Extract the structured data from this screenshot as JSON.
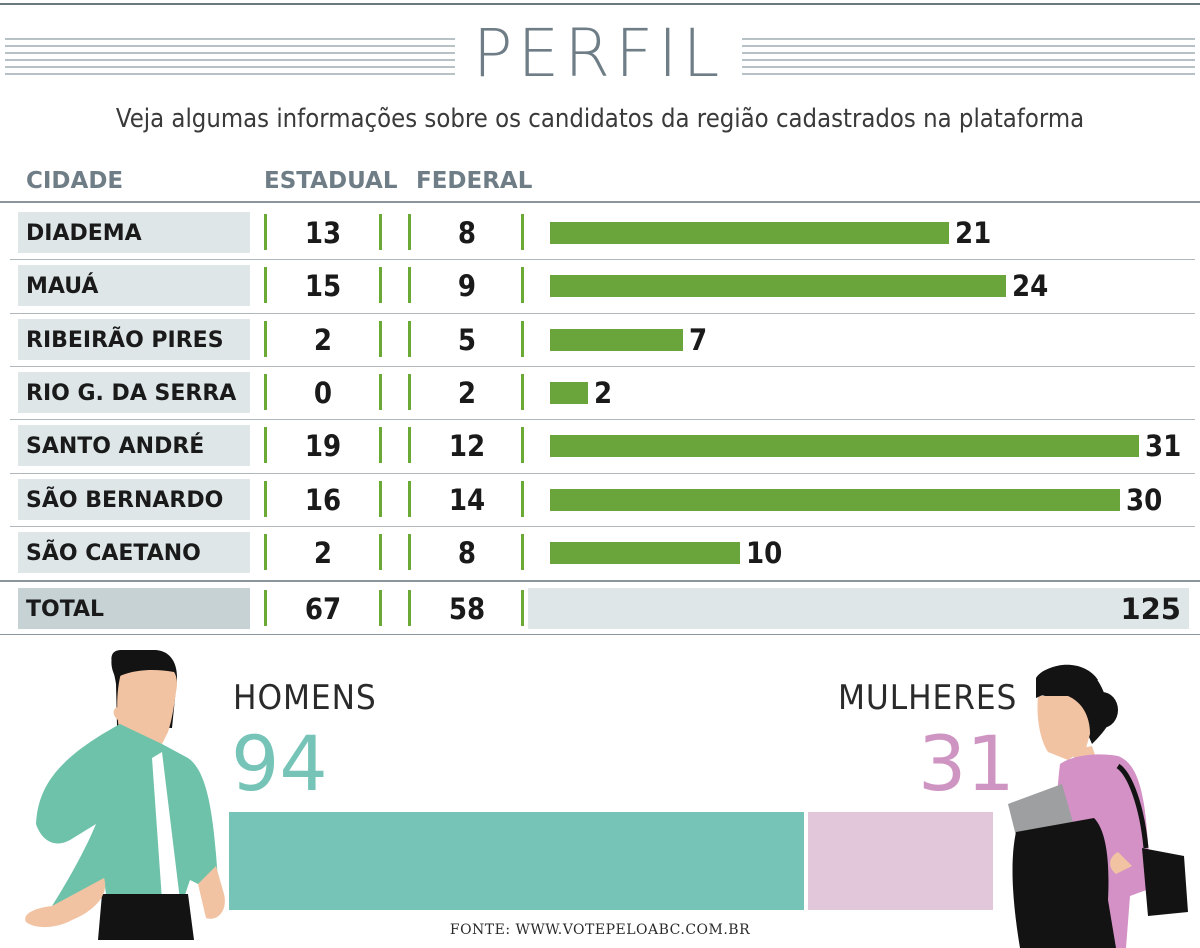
{
  "title": "PERFIL",
  "subtitle": "Veja algumas informações sobre os candidatos da região cadastrados na plataforma",
  "columns": {
    "city": "CIDADE",
    "estadual": "ESTADUAL",
    "federal": "FEDERAL"
  },
  "rows": [
    {
      "city": "DIADEMA",
      "estadual": "13",
      "federal": "8",
      "total": "21"
    },
    {
      "city": "MAUÁ",
      "estadual": "15",
      "federal": "9",
      "total": "24"
    },
    {
      "city": "RIBEIRÃO PIRES",
      "estadual": "2",
      "federal": "5",
      "total": "7"
    },
    {
      "city": "RIO G. DA SERRA",
      "estadual": "0",
      "federal": "2",
      "total": "2"
    },
    {
      "city": "SANTO ANDRÉ",
      "estadual": "19",
      "federal": "12",
      "total": "31"
    },
    {
      "city": "SÃO BERNARDO",
      "estadual": "16",
      "federal": "14",
      "total": "30"
    },
    {
      "city": "SÃO CAETANO",
      "estadual": "2",
      "federal": "8",
      "total": "10"
    }
  ],
  "total_row": {
    "label": "TOTAL",
    "estadual": "67",
    "federal": "58",
    "total": "125"
  },
  "gender": {
    "men_label": "HOMENS",
    "men_value": "94",
    "women_label": "MULHERES",
    "women_value": "31"
  },
  "source": "FONTE: WWW.VOTEPELOABC.COM.BR",
  "colors": {
    "bar_green": "#69a53b",
    "men_teal": "#76c4b7",
    "women_pink": "#e2c6d9",
    "women_text": "#cf95c2",
    "heading_gray": "#6e7d86"
  },
  "chart_data": [
    {
      "type": "bar",
      "categories": [
        "DIADEMA",
        "MAUÁ",
        "RIBEIRÃO PIRES",
        "RIO G. DA SERRA",
        "SANTO ANDRÉ",
        "SÃO BERNARDO",
        "SÃO CAETANO"
      ],
      "values": [
        21,
        24,
        7,
        2,
        31,
        30,
        10
      ],
      "table": {
        "ESTADUAL": [
          13,
          15,
          2,
          0,
          19,
          16,
          2
        ],
        "FEDERAL": [
          8,
          9,
          5,
          2,
          12,
          14,
          8
        ]
      },
      "totals": {
        "ESTADUAL": 67,
        "FEDERAL": 58,
        "TOTAL": 125
      },
      "title": "PERFIL",
      "orientation": "horizontal"
    },
    {
      "type": "bar",
      "categories": [
        "HOMENS",
        "MULHERES"
      ],
      "values": [
        94,
        31
      ],
      "orientation": "horizontal-stacked"
    }
  ]
}
